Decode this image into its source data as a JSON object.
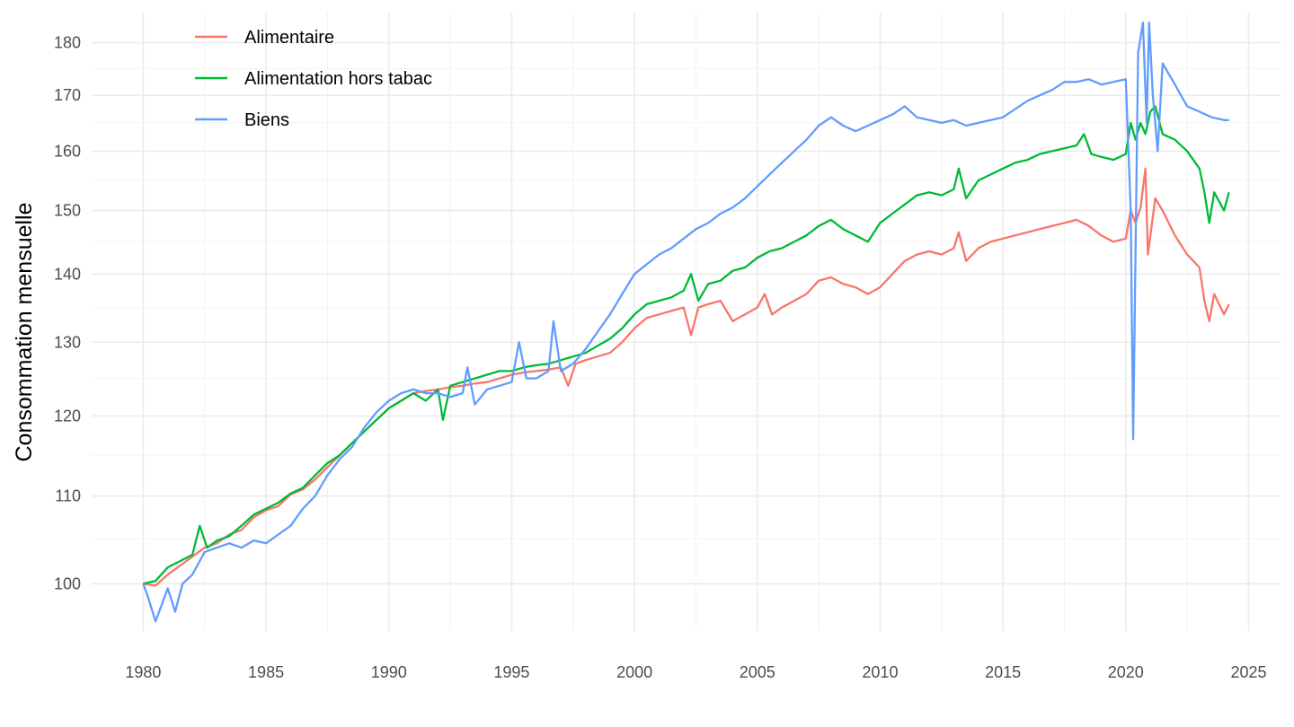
{
  "chart_data": {
    "type": "line",
    "title": "",
    "xlabel": "",
    "ylabel": "Consommation mensuelle",
    "y_scale": "log",
    "xlim": [
      1977.9,
      2026.3
    ],
    "ylim": [
      95,
      186
    ],
    "x_ticks": [
      1980,
      1985,
      1990,
      1995,
      2000,
      2005,
      2010,
      2015,
      2020,
      2025
    ],
    "y_ticks": [
      100,
      110,
      120,
      130,
      140,
      150,
      160,
      170,
      180
    ],
    "grid": true,
    "legend_position": "top-left",
    "series": [
      {
        "name": "Alimentaire",
        "color": "#F8766D",
        "points": [
          [
            1980.0,
            100.0
          ],
          [
            1980.5,
            99.8
          ],
          [
            1981.0,
            101.0
          ],
          [
            1981.5,
            102.0
          ],
          [
            1982.0,
            103.0
          ],
          [
            1982.5,
            104.0
          ],
          [
            1983.0,
            104.5
          ],
          [
            1983.5,
            105.5
          ],
          [
            1984.0,
            106.0
          ],
          [
            1984.5,
            107.5
          ],
          [
            1985.0,
            108.3
          ],
          [
            1985.5,
            108.8
          ],
          [
            1986.0,
            110.2
          ],
          [
            1986.5,
            110.8
          ],
          [
            1987.0,
            112.0
          ],
          [
            1987.5,
            113.5
          ],
          [
            1988.0,
            115.0
          ],
          [
            1988.5,
            116.5
          ],
          [
            1989.0,
            118.0
          ],
          [
            1989.5,
            119.5
          ],
          [
            1990.0,
            121.0
          ],
          [
            1990.5,
            122.0
          ],
          [
            1991.0,
            123.0
          ],
          [
            1991.5,
            123.3
          ],
          [
            1992.0,
            123.5
          ],
          [
            1992.5,
            123.8
          ],
          [
            1993.0,
            124.0
          ],
          [
            1993.5,
            124.3
          ],
          [
            1994.0,
            124.5
          ],
          [
            1994.5,
            125.0
          ],
          [
            1995.0,
            125.5
          ],
          [
            1995.5,
            125.8
          ],
          [
            1996.0,
            126.0
          ],
          [
            1996.5,
            126.2
          ],
          [
            1997.0,
            126.5
          ],
          [
            1997.3,
            124.0
          ],
          [
            1997.6,
            127.0
          ],
          [
            1998.0,
            127.5
          ],
          [
            1998.5,
            128.0
          ],
          [
            1999.0,
            128.5
          ],
          [
            1999.5,
            130.0
          ],
          [
            2000.0,
            132.0
          ],
          [
            2000.5,
            133.5
          ],
          [
            2001.0,
            134.0
          ],
          [
            2001.5,
            134.5
          ],
          [
            2002.0,
            135.0
          ],
          [
            2002.3,
            131.0
          ],
          [
            2002.6,
            135.0
          ],
          [
            2003.0,
            135.5
          ],
          [
            2003.5,
            136.0
          ],
          [
            2004.0,
            133.0
          ],
          [
            2004.5,
            134.0
          ],
          [
            2005.0,
            135.0
          ],
          [
            2005.3,
            137.0
          ],
          [
            2005.6,
            134.0
          ],
          [
            2006.0,
            135.0
          ],
          [
            2006.5,
            136.0
          ],
          [
            2007.0,
            137.0
          ],
          [
            2007.5,
            139.0
          ],
          [
            2008.0,
            139.5
          ],
          [
            2008.5,
            138.5
          ],
          [
            2009.0,
            138.0
          ],
          [
            2009.5,
            137.0
          ],
          [
            2010.0,
            138.0
          ],
          [
            2010.5,
            140.0
          ],
          [
            2011.0,
            142.0
          ],
          [
            2011.5,
            143.0
          ],
          [
            2012.0,
            143.5
          ],
          [
            2012.5,
            143.0
          ],
          [
            2013.0,
            144.0
          ],
          [
            2013.2,
            146.5
          ],
          [
            2013.5,
            142.0
          ],
          [
            2014.0,
            144.0
          ],
          [
            2014.5,
            145.0
          ],
          [
            2015.0,
            145.5
          ],
          [
            2015.5,
            146.0
          ],
          [
            2016.0,
            146.5
          ],
          [
            2016.5,
            147.0
          ],
          [
            2017.0,
            147.5
          ],
          [
            2017.5,
            148.0
          ],
          [
            2018.0,
            148.5
          ],
          [
            2018.5,
            147.5
          ],
          [
            2019.0,
            146.0
          ],
          [
            2019.5,
            145.0
          ],
          [
            2020.0,
            145.5
          ],
          [
            2020.2,
            150.0
          ],
          [
            2020.4,
            148.0
          ],
          [
            2020.6,
            150.5
          ],
          [
            2020.8,
            157.0
          ],
          [
            2020.9,
            143.0
          ],
          [
            2021.2,
            152.0
          ],
          [
            2021.5,
            150.0
          ],
          [
            2022.0,
            146.0
          ],
          [
            2022.5,
            143.0
          ],
          [
            2023.0,
            141.0
          ],
          [
            2023.2,
            136.0
          ],
          [
            2023.4,
            133.0
          ],
          [
            2023.6,
            137.0
          ],
          [
            2024.0,
            134.0
          ],
          [
            2024.2,
            135.5
          ]
        ]
      },
      {
        "name": "Alimentation hors tabac",
        "color": "#00BA38",
        "points": [
          [
            1980.0,
            100.0
          ],
          [
            1980.5,
            100.3
          ],
          [
            1981.0,
            101.8
          ],
          [
            1981.5,
            102.5
          ],
          [
            1982.0,
            103.2
          ],
          [
            1982.3,
            106.5
          ],
          [
            1982.6,
            104.0
          ],
          [
            1983.0,
            104.8
          ],
          [
            1983.5,
            105.3
          ],
          [
            1984.0,
            106.5
          ],
          [
            1984.5,
            107.8
          ],
          [
            1985.0,
            108.5
          ],
          [
            1985.5,
            109.2
          ],
          [
            1986.0,
            110.3
          ],
          [
            1986.5,
            111.0
          ],
          [
            1987.0,
            112.5
          ],
          [
            1987.5,
            114.0
          ],
          [
            1988.0,
            115.0
          ],
          [
            1988.5,
            116.5
          ],
          [
            1989.0,
            118.0
          ],
          [
            1989.5,
            119.5
          ],
          [
            1990.0,
            121.0
          ],
          [
            1990.5,
            122.0
          ],
          [
            1991.0,
            123.0
          ],
          [
            1991.5,
            122.0
          ],
          [
            1992.0,
            123.5
          ],
          [
            1992.2,
            119.5
          ],
          [
            1992.5,
            124.0
          ],
          [
            1993.0,
            124.5
          ],
          [
            1993.5,
            125.0
          ],
          [
            1994.0,
            125.5
          ],
          [
            1994.5,
            126.0
          ],
          [
            1995.0,
            126.0
          ],
          [
            1995.5,
            126.5
          ],
          [
            1996.0,
            126.8
          ],
          [
            1996.5,
            127.0
          ],
          [
            1997.0,
            127.5
          ],
          [
            1997.5,
            128.0
          ],
          [
            1998.0,
            128.5
          ],
          [
            1998.5,
            129.5
          ],
          [
            1999.0,
            130.5
          ],
          [
            1999.5,
            132.0
          ],
          [
            2000.0,
            134.0
          ],
          [
            2000.5,
            135.5
          ],
          [
            2001.0,
            136.0
          ],
          [
            2001.5,
            136.5
          ],
          [
            2002.0,
            137.5
          ],
          [
            2002.3,
            140.0
          ],
          [
            2002.6,
            136.0
          ],
          [
            2003.0,
            138.5
          ],
          [
            2003.5,
            139.0
          ],
          [
            2004.0,
            140.5
          ],
          [
            2004.5,
            141.0
          ],
          [
            2005.0,
            142.5
          ],
          [
            2005.5,
            143.5
          ],
          [
            2006.0,
            144.0
          ],
          [
            2006.5,
            145.0
          ],
          [
            2007.0,
            146.0
          ],
          [
            2007.5,
            147.5
          ],
          [
            2008.0,
            148.5
          ],
          [
            2008.5,
            147.0
          ],
          [
            2009.0,
            146.0
          ],
          [
            2009.5,
            145.0
          ],
          [
            2010.0,
            148.0
          ],
          [
            2010.5,
            149.5
          ],
          [
            2011.0,
            151.0
          ],
          [
            2011.5,
            152.5
          ],
          [
            2012.0,
            153.0
          ],
          [
            2012.5,
            152.5
          ],
          [
            2013.0,
            153.5
          ],
          [
            2013.2,
            157.0
          ],
          [
            2013.5,
            152.0
          ],
          [
            2014.0,
            155.0
          ],
          [
            2014.5,
            156.0
          ],
          [
            2015.0,
            157.0
          ],
          [
            2015.5,
            158.0
          ],
          [
            2016.0,
            158.5
          ],
          [
            2016.5,
            159.5
          ],
          [
            2017.0,
            160.0
          ],
          [
            2017.5,
            160.5
          ],
          [
            2018.0,
            161.0
          ],
          [
            2018.3,
            163.0
          ],
          [
            2018.6,
            159.5
          ],
          [
            2019.0,
            159.0
          ],
          [
            2019.5,
            158.5
          ],
          [
            2020.0,
            159.5
          ],
          [
            2020.2,
            165.0
          ],
          [
            2020.4,
            162.0
          ],
          [
            2020.6,
            165.0
          ],
          [
            2020.8,
            163.0
          ],
          [
            2021.0,
            167.0
          ],
          [
            2021.2,
            168.0
          ],
          [
            2021.5,
            163.0
          ],
          [
            2022.0,
            162.0
          ],
          [
            2022.5,
            160.0
          ],
          [
            2023.0,
            157.0
          ],
          [
            2023.2,
            153.0
          ],
          [
            2023.4,
            148.0
          ],
          [
            2023.6,
            153.0
          ],
          [
            2024.0,
            150.0
          ],
          [
            2024.2,
            153.0
          ]
        ]
      },
      {
        "name": "Biens",
        "color": "#619CFF",
        "points": [
          [
            1980.0,
            100.0
          ],
          [
            1980.2,
            98.5
          ],
          [
            1980.5,
            96.0
          ],
          [
            1981.0,
            99.5
          ],
          [
            1981.3,
            97.0
          ],
          [
            1981.6,
            100.0
          ],
          [
            1982.0,
            101.0
          ],
          [
            1982.5,
            103.5
          ],
          [
            1983.0,
            104.0
          ],
          [
            1983.5,
            104.5
          ],
          [
            1984.0,
            104.0
          ],
          [
            1984.5,
            104.8
          ],
          [
            1985.0,
            104.5
          ],
          [
            1985.5,
            105.5
          ],
          [
            1986.0,
            106.5
          ],
          [
            1986.5,
            108.5
          ],
          [
            1987.0,
            110.0
          ],
          [
            1987.5,
            112.5
          ],
          [
            1988.0,
            114.5
          ],
          [
            1988.5,
            116.0
          ],
          [
            1989.0,
            118.5
          ],
          [
            1989.5,
            120.5
          ],
          [
            1990.0,
            122.0
          ],
          [
            1990.5,
            123.0
          ],
          [
            1991.0,
            123.5
          ],
          [
            1991.5,
            123.0
          ],
          [
            1992.0,
            123.0
          ],
          [
            1992.5,
            122.5
          ],
          [
            1993.0,
            123.0
          ],
          [
            1993.2,
            126.5
          ],
          [
            1993.5,
            121.5
          ],
          [
            1994.0,
            123.5
          ],
          [
            1994.5,
            124.0
          ],
          [
            1995.0,
            124.5
          ],
          [
            1995.3,
            130.0
          ],
          [
            1995.6,
            125.0
          ],
          [
            1996.0,
            125.0
          ],
          [
            1996.5,
            126.0
          ],
          [
            1996.7,
            133.0
          ],
          [
            1997.0,
            126.0
          ],
          [
            1997.5,
            127.0
          ],
          [
            1998.0,
            129.0
          ],
          [
            1998.5,
            131.5
          ],
          [
            1999.0,
            134.0
          ],
          [
            1999.5,
            137.0
          ],
          [
            2000.0,
            140.0
          ],
          [
            2000.5,
            141.5
          ],
          [
            2001.0,
            143.0
          ],
          [
            2001.5,
            144.0
          ],
          [
            2002.0,
            145.5
          ],
          [
            2002.5,
            147.0
          ],
          [
            2003.0,
            148.0
          ],
          [
            2003.5,
            149.5
          ],
          [
            2004.0,
            150.5
          ],
          [
            2004.5,
            152.0
          ],
          [
            2005.0,
            154.0
          ],
          [
            2005.5,
            156.0
          ],
          [
            2006.0,
            158.0
          ],
          [
            2006.5,
            160.0
          ],
          [
            2007.0,
            162.0
          ],
          [
            2007.5,
            164.5
          ],
          [
            2008.0,
            166.0
          ],
          [
            2008.5,
            164.5
          ],
          [
            2009.0,
            163.5
          ],
          [
            2009.5,
            164.5
          ],
          [
            2010.0,
            165.5
          ],
          [
            2010.5,
            166.5
          ],
          [
            2011.0,
            168.0
          ],
          [
            2011.5,
            166.0
          ],
          [
            2012.0,
            165.5
          ],
          [
            2012.5,
            165.0
          ],
          [
            2013.0,
            165.5
          ],
          [
            2013.5,
            164.5
          ],
          [
            2014.0,
            165.0
          ],
          [
            2014.5,
            165.5
          ],
          [
            2015.0,
            166.0
          ],
          [
            2015.5,
            167.5
          ],
          [
            2016.0,
            169.0
          ],
          [
            2016.5,
            170.0
          ],
          [
            2017.0,
            171.0
          ],
          [
            2017.5,
            172.5
          ],
          [
            2018.0,
            172.5
          ],
          [
            2018.5,
            173.0
          ],
          [
            2019.0,
            172.0
          ],
          [
            2019.5,
            172.5
          ],
          [
            2020.0,
            173.0
          ],
          [
            2020.2,
            150.0
          ],
          [
            2020.3,
            117.0
          ],
          [
            2020.5,
            178.0
          ],
          [
            2020.7,
            184.0
          ],
          [
            2020.85,
            165.0
          ],
          [
            2020.95,
            184.0
          ],
          [
            2021.1,
            170.0
          ],
          [
            2021.3,
            160.0
          ],
          [
            2021.5,
            176.0
          ],
          [
            2022.0,
            172.0
          ],
          [
            2022.5,
            168.0
          ],
          [
            2023.0,
            167.0
          ],
          [
            2023.5,
            166.0
          ],
          [
            2024.0,
            165.5
          ],
          [
            2024.2,
            165.5
          ]
        ]
      }
    ]
  }
}
